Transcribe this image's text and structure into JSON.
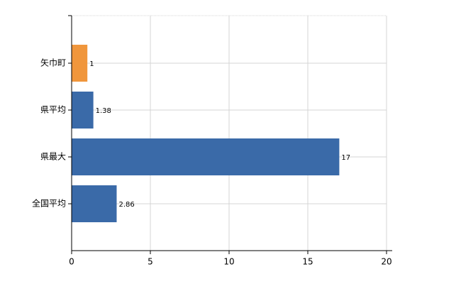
{
  "chart_data": {
    "type": "bar",
    "orientation": "horizontal",
    "categories": [
      "矢巾町",
      "県平均",
      "県最大",
      "全国平均"
    ],
    "values": [
      1,
      1.38,
      17,
      2.86
    ],
    "colors": [
      "#f0963c",
      "#3a6aa8",
      "#3a6aa8",
      "#3a6aa8"
    ],
    "xlim": [
      0,
      20
    ],
    "xticks": [
      0,
      5,
      10,
      15,
      20
    ],
    "grid": true
  }
}
